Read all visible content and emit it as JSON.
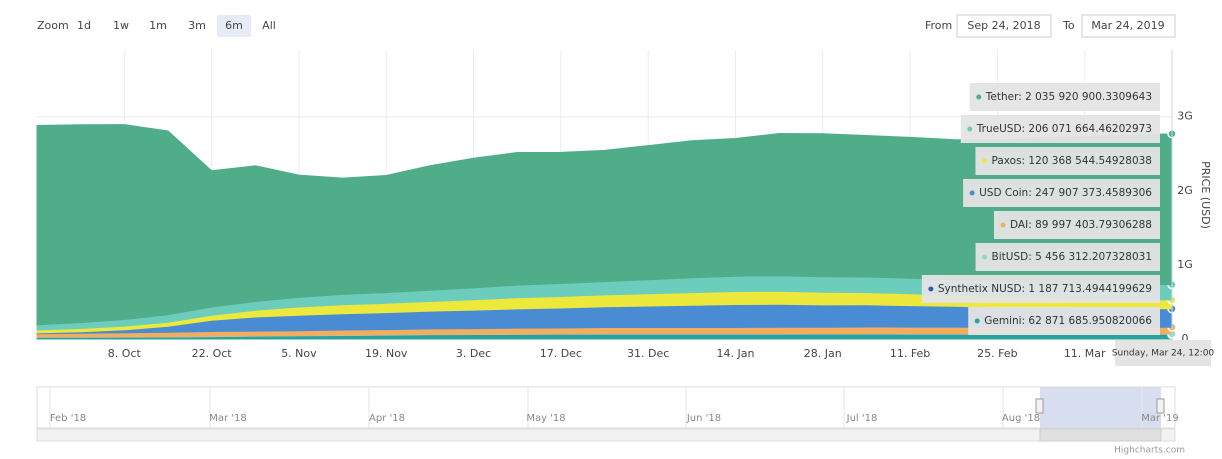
{
  "ui": {
    "zoom_label": "Zoom",
    "zoom_buttons": [
      "1d",
      "1w",
      "1m",
      "3m",
      "6m",
      "All"
    ],
    "zoom_selected": 4,
    "from_label": "From",
    "from_value": "Sep 24, 2018",
    "to_label": "To",
    "to_value": "Mar 24, 2019",
    "navigator_labels": [
      "Feb '18",
      "Mar '18",
      "Apr '18",
      "May '18",
      "Jun '18",
      "Jul '18",
      "Aug '18",
      "Mar '19"
    ],
    "credits": "Highcharts.com"
  },
  "chart_data": {
    "type": "stacked-area",
    "y_label": "PRICE (USD)",
    "categories": [
      null,
      null,
      "8. Oct",
      null,
      "22. Oct",
      null,
      "5. Nov",
      null,
      "19. Nov",
      null,
      "3. Dec",
      null,
      "17. Dec",
      null,
      "31. Dec",
      null,
      "14. Jan",
      null,
      "28. Jan",
      null,
      "11. Feb",
      null,
      "25. Feb",
      null,
      "11. Mar",
      null,
      null
    ],
    "series": [
      {
        "name": "Tether",
        "color": "#50ad8a",
        "values": [
          2690000000,
          2670000000,
          2630000000,
          2480000000,
          1840000000,
          1830000000,
          1650000000,
          1570000000,
          1580000000,
          1680000000,
          1750000000,
          1790000000,
          1770000000,
          1770000000,
          1810000000,
          1850000000,
          1860000000,
          1920000000,
          1930000000,
          1910000000,
          1900000000,
          1890000000,
          1900000000,
          1950000000,
          1980000000,
          2010000000,
          2035920900.3309643
        ]
      },
      {
        "name": "TrueUSD",
        "color": "#6dcdbd",
        "values": [
          70000000,
          80000000,
          90000000,
          100000000,
          110000000,
          120000000,
          130000000,
          140000000,
          145000000,
          150000000,
          160000000,
          170000000,
          175000000,
          180000000,
          190000000,
          200000000,
          205000000,
          210000000,
          210000000,
          210000000,
          210000000,
          210000000,
          210000000,
          208000000,
          207000000,
          206000000,
          206071664.46202973
        ]
      },
      {
        "name": "Paxos",
        "color": "#ede83c",
        "values": [
          40000000,
          45000000,
          50000000,
          55000000,
          70000000,
          90000000,
          110000000,
          120000000,
          125000000,
          130000000,
          140000000,
          150000000,
          155000000,
          160000000,
          165000000,
          170000000,
          175000000,
          175000000,
          170000000,
          165000000,
          160000000,
          150000000,
          145000000,
          135000000,
          130000000,
          125000000,
          120368544.54928038
        ]
      },
      {
        "name": "USD Coin",
        "color": "#4a8cd4",
        "values": [
          10000000,
          20000000,
          40000000,
          80000000,
          150000000,
          190000000,
          210000000,
          220000000,
          230000000,
          240000000,
          250000000,
          260000000,
          270000000,
          280000000,
          290000000,
          300000000,
          310000000,
          310000000,
          300000000,
          300000000,
          290000000,
          280000000,
          270000000,
          260000000,
          255000000,
          250000000,
          247907373.4589306
        ]
      },
      {
        "name": "DAI",
        "color": "#f3ad5e",
        "values": [
          45000000,
          50000000,
          55000000,
          60000000,
          65000000,
          65000000,
          65000000,
          70000000,
          70000000,
          75000000,
          75000000,
          80000000,
          80000000,
          85000000,
          85000000,
          85000000,
          85000000,
          88000000,
          88000000,
          90000000,
          90000000,
          90000000,
          90000000,
          90000000,
          90000000,
          90000000,
          89997403.79306288
        ]
      },
      {
        "name": "BitUSD",
        "color": "#8fd6d0",
        "values": [
          5500000,
          5500000,
          5500000,
          5500000,
          5500000,
          5500000,
          5500000,
          5500000,
          5500000,
          5500000,
          5500000,
          5500000,
          5500000,
          5500000,
          5500000,
          5500000,
          5500000,
          5500000,
          5500000,
          5500000,
          5500000,
          5500000,
          5500000,
          5500000,
          5500000,
          5500000,
          5456312.207328031
        ]
      },
      {
        "name": "Synthetix NUSD",
        "color": "#2e5ea8",
        "values": [
          1200000,
          1200000,
          1200000,
          1200000,
          1200000,
          1200000,
          1200000,
          1200000,
          1200000,
          1200000,
          1200000,
          1200000,
          1200000,
          1200000,
          1200000,
          1200000,
          1200000,
          1200000,
          1200000,
          1200000,
          1200000,
          1200000,
          1200000,
          1200000,
          1200000,
          1200000,
          1187713.4944199629
        ]
      },
      {
        "name": "Gemini",
        "color": "#29a49b",
        "values": [
          20000000,
          20000000,
          22000000,
          25000000,
          30000000,
          35000000,
          40000000,
          45000000,
          50000000,
          55000000,
          58000000,
          60000000,
          62000000,
          63000000,
          63000000,
          64000000,
          64000000,
          64000000,
          65000000,
          65000000,
          64000000,
          64000000,
          63000000,
          63000000,
          63000000,
          63000000,
          62871685.950820066
        ]
      }
    ],
    "ylim": [
      0,
      3900000000
    ],
    "yticks": [
      0,
      {
        "value": 1000000000,
        "label": "1G"
      },
      {
        "value": 2000000000,
        "label": "2G"
      },
      {
        "value": 3000000000,
        "label": "3G"
      }
    ],
    "grid": true,
    "tooltip": {
      "header": "Sunday, Mar 24, 12:00",
      "items": [
        "Tether: 2 035 920 900.3309643",
        "TrueUSD: 206 071 664.46202973",
        "Paxos: 120 368 544.54928038",
        "USD Coin: 247 907 373.4589306",
        "DAI: 89 997 403.79306288",
        "BitUSD: 5 456 312.207328031",
        "Synthetix NUSD: 1 187 713.4944199629",
        "Gemini: 62 871 685.950820066"
      ]
    }
  }
}
